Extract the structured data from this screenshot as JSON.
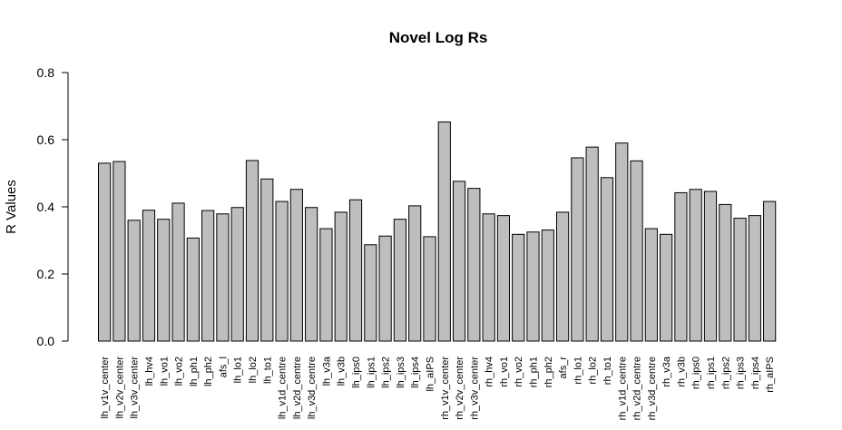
{
  "chart_data": {
    "type": "bar",
    "title": "Novel Log Rs",
    "xlabel": "",
    "ylabel": "R Values",
    "ylim": [
      0,
      0.8
    ],
    "yticks": [
      "0.0",
      "0.2",
      "0.4",
      "0.6",
      "0.8"
    ],
    "grid": false,
    "bar_color": "#bebebe",
    "categories": [
      "lh_v1v_center",
      "lh_v2v_center",
      "lh_v3v_center",
      "lh_hv4",
      "lh_vo1",
      "lh_vo2",
      "lh_ph1",
      "lh_ph2",
      "afs_l",
      "lh_lo1",
      "lh_lo2",
      "lh_to1",
      "lh_v1d_centre",
      "lh_v2d_centre",
      "lh_v3d_centre",
      "lh_v3a",
      "lh_v3b",
      "lh_ips0",
      "lh_ips1",
      "lh_ips2",
      "lh_ips3",
      "lh_ips4",
      "lh_aIPS",
      "rh_v1v_center",
      "rh_v2v_center",
      "rh_v3v_center",
      "rh_hv4",
      "rh_vo1",
      "rh_vo2",
      "rh_ph1",
      "rh_ph2",
      "afs_r",
      "rh_lo1",
      "rh_lo2",
      "rh_to1",
      "rh_v1d_centre",
      "rh_v2d_centre",
      "rh_v3d_centre",
      "rh_v3a",
      "rh_v3b",
      "rh_ips0",
      "rh_ips1",
      "rh_ips2",
      "rh_ips3",
      "rh_ips4",
      "rh_aIPS"
    ],
    "values": [
      0.53,
      0.535,
      0.36,
      0.39,
      0.363,
      0.411,
      0.307,
      0.389,
      0.379,
      0.398,
      0.538,
      0.483,
      0.416,
      0.452,
      0.398,
      0.335,
      0.384,
      0.421,
      0.287,
      0.313,
      0.363,
      0.403,
      0.311,
      0.653,
      0.476,
      0.455,
      0.379,
      0.374,
      0.318,
      0.325,
      0.331,
      0.384,
      0.546,
      0.578,
      0.487,
      0.59,
      0.537,
      0.335,
      0.318,
      0.442,
      0.452,
      0.446,
      0.407,
      0.366,
      0.374,
      0.416
    ]
  }
}
